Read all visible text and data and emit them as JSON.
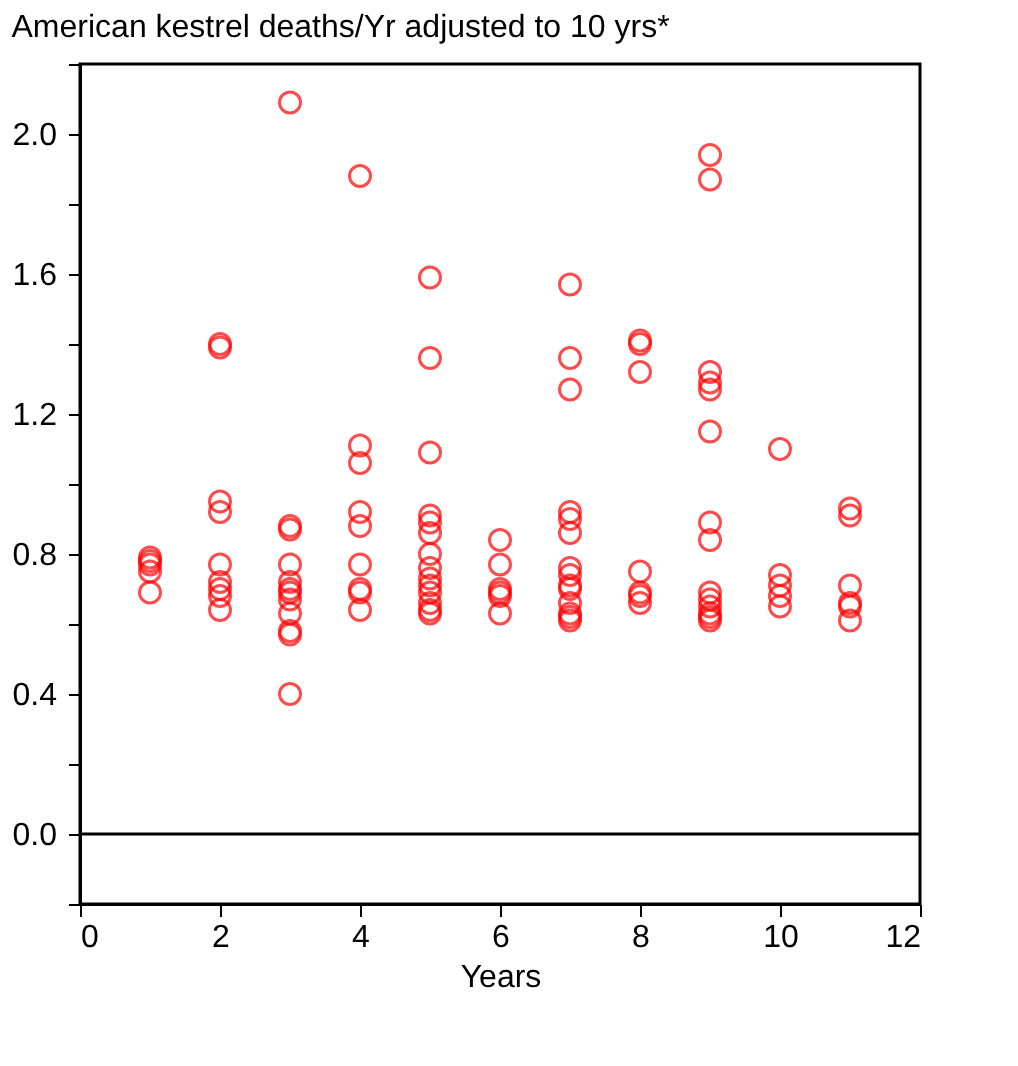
{
  "chart_data": {
    "type": "scatter",
    "title": "American kestrel deaths/Yr adjusted to 10 yrs*",
    "xlabel": "Years",
    "series": [
      {
        "color": "#ff0000",
        "marker": "circle",
        "x": [
          1,
          1,
          1,
          1,
          1,
          2,
          2,
          2,
          2,
          2,
          2,
          2,
          2,
          2,
          3,
          3,
          3,
          3,
          3,
          3,
          3,
          3,
          3,
          3,
          3,
          3,
          4,
          4,
          4,
          4,
          4,
          4,
          4,
          4,
          4,
          5,
          5,
          5,
          5,
          5,
          5,
          5,
          5,
          5,
          5,
          5,
          5,
          5,
          5,
          6,
          6,
          6,
          6,
          6,
          6,
          7,
          7,
          7,
          7,
          7,
          7,
          7,
          7,
          7,
          7,
          7,
          7,
          7,
          7,
          8,
          8,
          8,
          8,
          8,
          8,
          8,
          9,
          9,
          9,
          9,
          9,
          9,
          9,
          9,
          9,
          9,
          9,
          9,
          9,
          9,
          10,
          10,
          10,
          10,
          10,
          11,
          11,
          11,
          11,
          11,
          11
        ],
        "values": [
          0.79,
          0.78,
          0.77,
          0.75,
          0.69,
          1.4,
          1.39,
          0.95,
          0.92,
          0.77,
          0.72,
          0.7,
          0.68,
          0.64,
          2.09,
          0.88,
          0.87,
          0.77,
          0.72,
          0.7,
          0.69,
          0.67,
          0.63,
          0.58,
          0.57,
          0.4,
          1.88,
          1.11,
          1.06,
          0.92,
          0.88,
          0.77,
          0.7,
          0.69,
          0.64,
          1.59,
          1.36,
          1.09,
          0.91,
          0.89,
          0.86,
          0.8,
          0.76,
          0.73,
          0.71,
          0.69,
          0.66,
          0.64,
          0.63,
          0.84,
          0.77,
          0.7,
          0.69,
          0.68,
          0.63,
          1.57,
          1.36,
          1.27,
          0.92,
          0.9,
          0.86,
          0.76,
          0.74,
          0.71,
          0.7,
          0.66,
          0.63,
          0.62,
          0.61,
          1.41,
          1.4,
          1.32,
          0.75,
          0.69,
          0.68,
          0.66,
          1.94,
          1.87,
          1.32,
          1.29,
          1.27,
          1.15,
          0.89,
          0.84,
          0.69,
          0.67,
          0.65,
          0.63,
          0.62,
          0.61,
          1.1,
          0.74,
          0.71,
          0.68,
          0.65,
          0.93,
          0.91,
          0.71,
          0.66,
          0.65,
          0.61
        ]
      }
    ],
    "xlim": [
      0,
      12
    ],
    "xticks": [
      0,
      2,
      4,
      6,
      8,
      10,
      12
    ],
    "ylim": [
      -0.2,
      2.2
    ],
    "yticks": [
      {
        "value": -0.2,
        "label": null
      },
      "0.0",
      {
        "value": 0.2,
        "label": null
      },
      0.4,
      {
        "value": 0.6,
        "label": null
      },
      0.8,
      {
        "value": 1.0,
        "label": null
      },
      1.2,
      {
        "value": 1.4,
        "label": null
      },
      1.6,
      {
        "value": 1.8,
        "label": null
      },
      "2.0",
      {
        "value": 2.2,
        "label": null
      }
    ],
    "ref_lines": [
      {
        "axis": "y",
        "value": 0,
        "color": "#000000",
        "line_style": "solid"
      }
    ],
    "grid": false
  }
}
